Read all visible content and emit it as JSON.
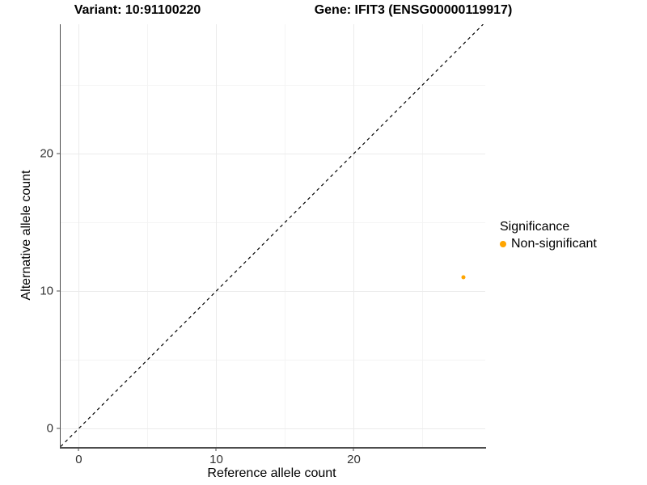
{
  "chart_data": {
    "type": "scatter",
    "titles": {
      "left": "Variant: 10:91100220",
      "right": "Gene: IFIT3 (ENSG00000119917)"
    },
    "xlabel": "Reference allele count",
    "ylabel": "Alternative allele count",
    "xlim": [
      -1.32,
      29.56
    ],
    "ylim": [
      -1.35,
      29.41
    ],
    "x_ticks": [
      0,
      10,
      20
    ],
    "y_ticks": [
      0,
      10,
      20
    ],
    "x_minor_ticks": [
      5,
      15,
      25
    ],
    "y_minor_ticks": [
      5,
      15,
      25
    ],
    "grid": "major+minor",
    "identity_line": {
      "slope": 1,
      "intercept": 0,
      "style": "dashed",
      "color": "#000000"
    },
    "series": [
      {
        "name": "Non-significant",
        "color": "#FFA500",
        "points": [
          {
            "x": 28,
            "y": 11
          }
        ]
      }
    ],
    "legend": {
      "title": "Significance",
      "position": "right",
      "items": [
        {
          "label": "Non-significant",
          "color": "#FFA500",
          "marker": "circle"
        }
      ]
    }
  },
  "colors": {
    "background": "#ffffff",
    "axis_line": "#4d4d4d",
    "tick_label": "#333333",
    "grid_major": "#ebebeb",
    "grid_minor": "#f4f4f4"
  }
}
